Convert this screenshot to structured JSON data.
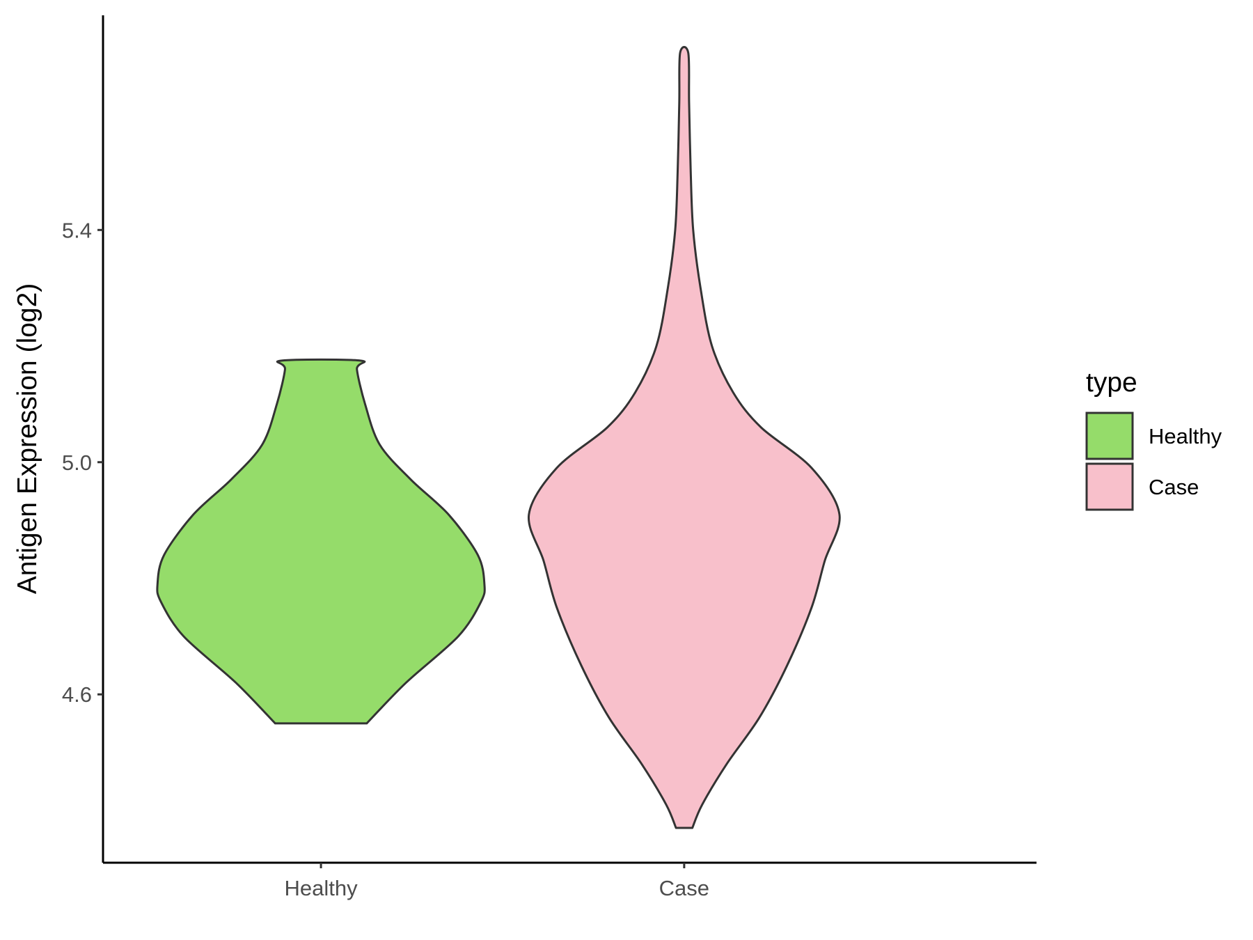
{
  "chart_data": {
    "type": "violin",
    "title": "",
    "xlabel": "",
    "ylabel": "Antigen Expression (log2)",
    "categories": [
      "Healthy",
      "Case"
    ],
    "y_ticks": [
      4.6,
      5.0,
      5.4
    ],
    "y_tick_labels": [
      "4.6",
      "5.0",
      "5.4"
    ],
    "ylim": [
      4.3,
      5.77
    ],
    "grid": false,
    "legend": {
      "title": "type",
      "position": "right",
      "entries": [
        "Healthy",
        "Case"
      ]
    },
    "series": [
      {
        "category": "Healthy",
        "color": "#95DC6A",
        "range": [
          4.55,
          5.175
        ],
        "density_profile": [
          [
            4.55,
            0.28
          ],
          [
            4.62,
            0.52
          ],
          [
            4.7,
            0.84
          ],
          [
            4.76,
            0.98
          ],
          [
            4.79,
            1.0
          ],
          [
            4.84,
            0.96
          ],
          [
            4.91,
            0.78
          ],
          [
            4.97,
            0.55
          ],
          [
            5.03,
            0.36
          ],
          [
            5.1,
            0.27
          ],
          [
            5.16,
            0.22
          ],
          [
            5.175,
            0.24
          ]
        ]
      },
      {
        "category": "Case",
        "color": "#F8C0CB",
        "range": [
          4.37,
          5.705
        ],
        "density_profile": [
          [
            4.37,
            0.05
          ],
          [
            4.41,
            0.11
          ],
          [
            4.48,
            0.26
          ],
          [
            4.56,
            0.46
          ],
          [
            4.65,
            0.63
          ],
          [
            4.75,
            0.78
          ],
          [
            4.83,
            0.86
          ],
          [
            4.91,
            0.95
          ],
          [
            4.99,
            0.78
          ],
          [
            5.06,
            0.47
          ],
          [
            5.12,
            0.3
          ],
          [
            5.2,
            0.17
          ],
          [
            5.3,
            0.1
          ],
          [
            5.4,
            0.055
          ],
          [
            5.5,
            0.04
          ],
          [
            5.62,
            0.03
          ],
          [
            5.705,
            0.025
          ]
        ]
      }
    ]
  }
}
